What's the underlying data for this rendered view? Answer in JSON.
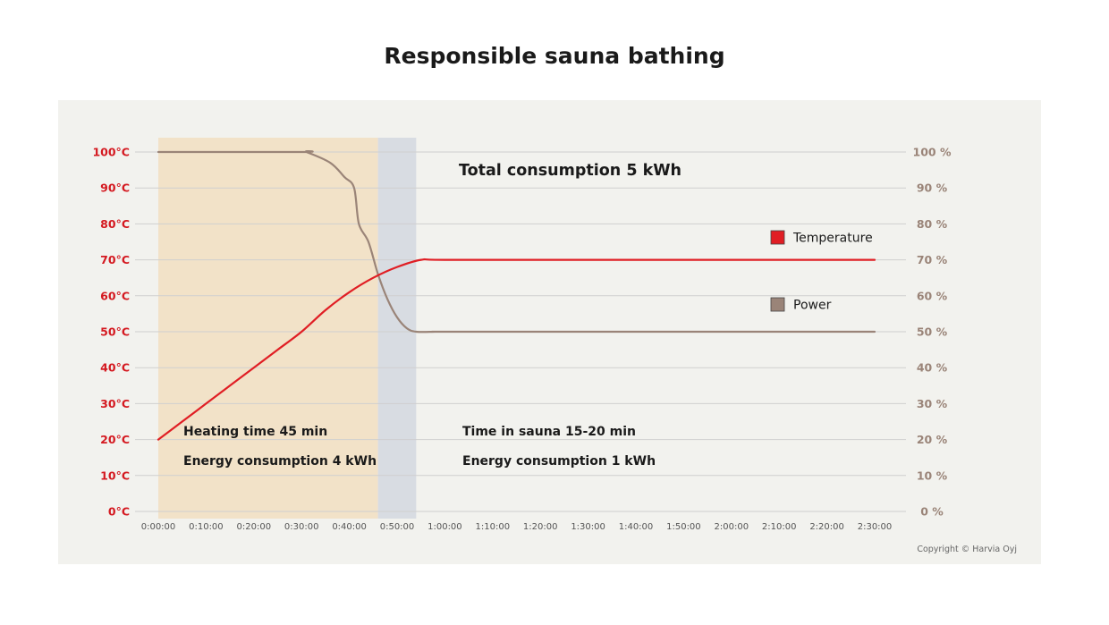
{
  "chart_data": {
    "type": "line",
    "title": "Responsible sauna bathing",
    "x_ticks": [
      "0:00:00",
      "0:10:00",
      "0:20:00",
      "0:30:00",
      "0:40:00",
      "0:50:00",
      "1:00:00",
      "1:10:00",
      "1:20:00",
      "1:30:00",
      "1:40:00",
      "1:50:00",
      "2:00:00",
      "2:10:00",
      "2:20:00",
      "2:30:00"
    ],
    "xlim_minutes": [
      0,
      150
    ],
    "y_left": {
      "ticks": [
        "0°C",
        "10°C",
        "20°C",
        "30°C",
        "40°C",
        "50°C",
        "60°C",
        "70°C",
        "80°C",
        "90°C",
        "100°C"
      ],
      "ylim": [
        0,
        100
      ],
      "color": "#d41920"
    },
    "y_right": {
      "ticks": [
        "0 %",
        "10 %",
        "20 %",
        "30 %",
        "40 %",
        "50 %",
        "60 %",
        "70 %",
        "80 %",
        "90 %",
        "100 %"
      ],
      "ylim": [
        0,
        100
      ],
      "color": "#9a8478"
    },
    "grid": true,
    "regions": [
      {
        "label": "heating",
        "x_start": 0,
        "x_end": 46,
        "color": "#f2e2c8"
      },
      {
        "label": "transition",
        "x_start": 46,
        "x_end": 54,
        "color": "#d8dce2"
      }
    ],
    "series": [
      {
        "name": "Temperature",
        "axis": "left",
        "color": "#e01e24",
        "x": [
          0,
          5,
          10,
          15,
          20,
          25,
          30,
          35,
          40,
          45,
          50,
          55,
          60,
          90,
          120,
          150
        ],
        "y": [
          20,
          25,
          30,
          35,
          40,
          45,
          50,
          56,
          61,
          65,
          68,
          70,
          70,
          70,
          70,
          70
        ]
      },
      {
        "name": "Power",
        "axis": "right",
        "color": "#9a8478",
        "x": [
          0,
          30,
          31,
          36,
          39,
          41,
          42,
          44,
          46,
          48,
          50,
          52,
          54,
          58,
          60,
          90,
          120,
          150
        ],
        "y": [
          100,
          100,
          100,
          97,
          93,
          90,
          80,
          75,
          66,
          59,
          54,
          51,
          50,
          50,
          50,
          50,
          50,
          50
        ]
      }
    ],
    "legend": {
      "placement": "right"
    },
    "annotations": {
      "total": "Total consumption 5 kWh",
      "heating_time": "Heating time 45 min",
      "heating_energy": "Energy consumption 4 kWh",
      "sauna_time": "Time in sauna 15-20 min",
      "sauna_energy": "Energy consumption 1 kWh"
    },
    "copyright": "Copyright © Harvia Oyj"
  }
}
